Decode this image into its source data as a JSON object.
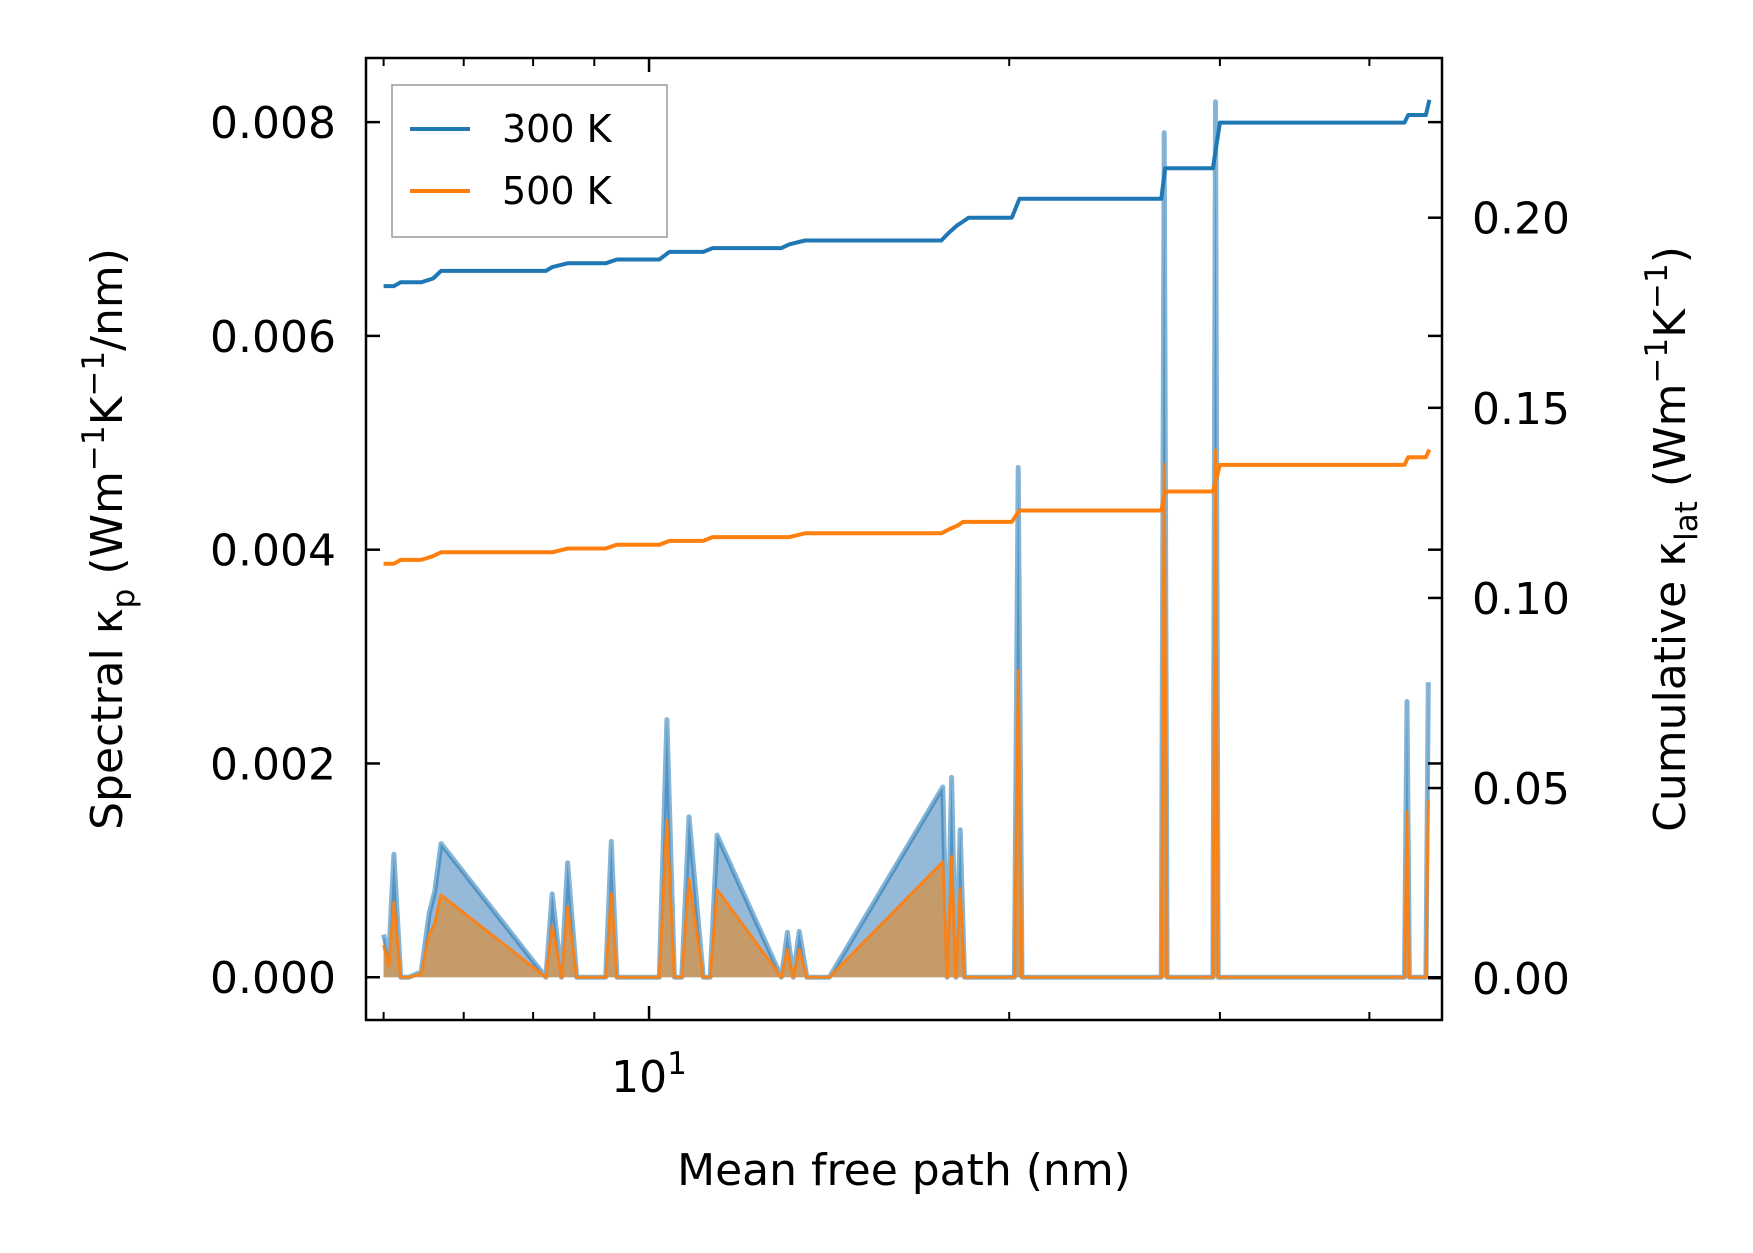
{
  "chart_data": {
    "type": "line",
    "x_scale": "log",
    "xlabel": "Mean free path (nm)",
    "ylabel_left": {
      "main": "Spectral κ",
      "sub": "p",
      "unit_open": " (Wm",
      "exp1": "−1",
      "mid": "K",
      "exp2": "−1",
      "unit_close": "/nm)"
    },
    "ylabel_right": {
      "main": "Cumulative κ",
      "sub": "lat",
      "unit_open": " (Wm",
      "exp1": "−1",
      "mid": "K",
      "exp2": "−1",
      "unit_close": ")"
    },
    "xlim": [
      5.8,
      46
    ],
    "ylim_left": [
      -0.0004,
      0.0086
    ],
    "ylim_right": [
      -0.011,
      0.242
    ],
    "x_ticks": [
      {
        "value": 10,
        "base": "10",
        "exp": "1"
      }
    ],
    "y_ticks_left": [
      "0.000",
      "0.002",
      "0.004",
      "0.006",
      "0.008"
    ],
    "y_ticks_right": [
      "0.00",
      "0.05",
      "0.10",
      "0.15",
      "0.20"
    ],
    "legend": {
      "position": "upper left",
      "entries": [
        "300 K",
        "500 K"
      ]
    },
    "colors": {
      "s300": "#1f77b4",
      "s500": "#ff7f0e",
      "fill300": "#8fb5d7",
      "fill500": "#c79a63"
    },
    "spectral_x": [
      6.0,
      6.06,
      6.12,
      6.2,
      6.3,
      6.45,
      6.55,
      6.62,
      6.7,
      8.2,
      8.3,
      8.45,
      8.55,
      8.7,
      9.2,
      9.3,
      9.4,
      10.2,
      10.35,
      10.5,
      10.65,
      10.8,
      11.1,
      11.25,
      11.4,
      12.9,
      13.05,
      13.2,
      13.35,
      13.55,
      13.7,
      13.85,
      14.0,
      14.15,
      17.6,
      17.75,
      17.9,
      18.05,
      18.2,
      18.35,
      18.5,
      18.65,
      18.8,
      18.95,
      19.1,
      20.2,
      20.35,
      20.5,
      20.65,
      26.8,
      26.95,
      27.1,
      27.25,
      27.45,
      29.6,
      29.75,
      29.9,
      30.05,
      30.2,
      42.8,
      43.0,
      43.2,
      43.4,
      44.6,
      44.8
    ],
    "spectral_300": [
      0.0004,
      0.0002,
      0.00115,
      0.0,
      0.0,
      5e-05,
      0.0006,
      0.0008,
      0.00125,
      0.0,
      0.00078,
      0.0,
      0.00107,
      0.0,
      0.0,
      0.00127,
      0.0,
      0.0,
      0.00241,
      0.0,
      0.0,
      0.0015,
      0.0,
      0.0,
      0.00133,
      0.0,
      0.00042,
      0.0,
      0.00043,
      0.0,
      0.0,
      0.0,
      0.0,
      0.0,
      0.00178,
      0.0,
      0.00187,
      0.0,
      0.00138,
      0.0,
      0.0,
      0.0,
      0.0,
      0.0,
      0.0,
      0.0,
      0.00477,
      0.0,
      0.0,
      0.0,
      0.0079,
      0.0,
      0.0,
      0.0,
      0.0,
      0.00819,
      0.0,
      0.0,
      0.0,
      0.0,
      0.00258,
      0.0,
      0.0,
      0.0,
      0.00276
    ],
    "spectral_500": [
      0.0003,
      0.0001,
      0.0007,
      0.0,
      0.0,
      3e-05,
      0.0004,
      0.0005,
      0.00077,
      0.0,
      0.00048,
      0.0,
      0.00066,
      0.0,
      0.0,
      0.00078,
      0.0,
      0.0,
      0.00147,
      0.0,
      0.0,
      0.00092,
      0.0,
      0.0,
      0.00082,
      0.0,
      0.00026,
      0.0,
      0.00026,
      0.0,
      0.0,
      0.0,
      0.0,
      0.0,
      0.00108,
      0.0,
      0.00113,
      0.0,
      0.00083,
      0.0,
      0.0,
      0.0,
      0.0,
      0.0,
      0.0,
      0.0,
      0.00287,
      0.0,
      0.0,
      0.0,
      0.0048,
      0.0,
      0.0,
      0.0,
      0.0,
      0.00493,
      0.0,
      0.0,
      0.0,
      0.0,
      0.00155,
      0.0,
      0.0,
      0.0,
      0.00166
    ],
    "cumulative_x": [
      6.0,
      6.12,
      6.2,
      6.45,
      6.6,
      6.7,
      8.2,
      8.3,
      8.55,
      9.2,
      9.4,
      10.2,
      10.4,
      11.1,
      11.3,
      12.9,
      13.1,
      13.5,
      14.0,
      17.55,
      17.8,
      18.1,
      18.3,
      18.5,
      19.0,
      20.1,
      20.4,
      20.6,
      26.8,
      27.0,
      27.4,
      29.6,
      30.0,
      30.3,
      42.8,
      43.1,
      43.4,
      44.6,
      44.9
    ],
    "cumulative_300": [
      0.182,
      0.182,
      0.183,
      0.183,
      0.184,
      0.186,
      0.186,
      0.187,
      0.188,
      0.188,
      0.189,
      0.189,
      0.191,
      0.191,
      0.192,
      0.192,
      0.193,
      0.194,
      0.194,
      0.194,
      0.196,
      0.198,
      0.199,
      0.2,
      0.2,
      0.2,
      0.205,
      0.205,
      0.205,
      0.213,
      0.213,
      0.213,
      0.225,
      0.225,
      0.225,
      0.227,
      0.227,
      0.227,
      0.231
    ],
    "cumulative_500": [
      0.109,
      0.109,
      0.11,
      0.11,
      0.111,
      0.112,
      0.112,
      0.112,
      0.113,
      0.113,
      0.114,
      0.114,
      0.115,
      0.115,
      0.116,
      0.116,
      0.116,
      0.117,
      0.117,
      0.117,
      0.118,
      0.119,
      0.12,
      0.12,
      0.12,
      0.12,
      0.123,
      0.123,
      0.123,
      0.128,
      0.128,
      0.128,
      0.135,
      0.135,
      0.135,
      0.137,
      0.137,
      0.137,
      0.139
    ]
  }
}
